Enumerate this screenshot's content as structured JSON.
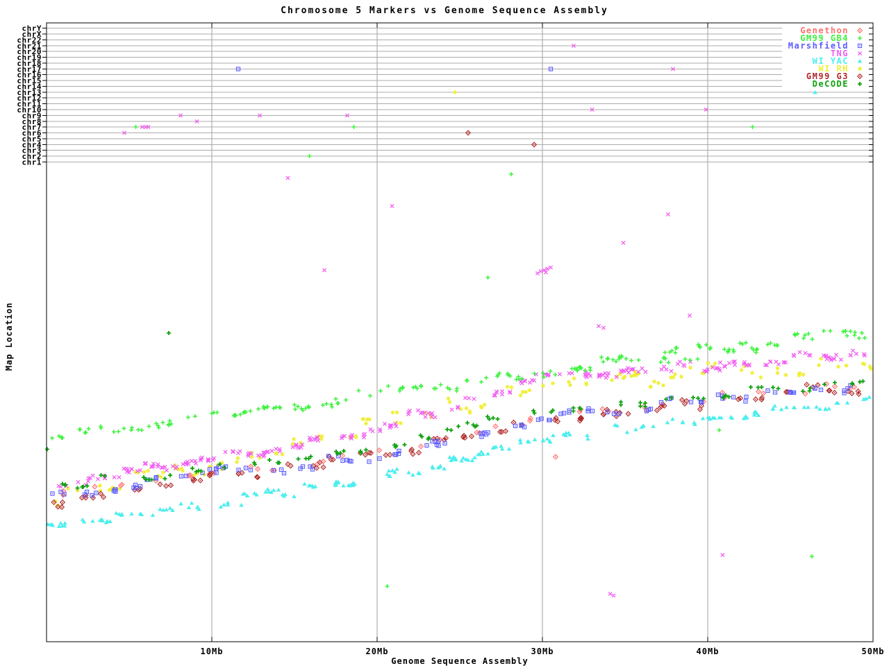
{
  "title": "Chromosome 5 Markers vs Genome Sequence Assembly",
  "axes": {
    "xlabel": "Genome Sequence Assembly",
    "ylabel": "Map Location",
    "x_ticks": [
      {
        "mb": 10,
        "label": "10Mb"
      },
      {
        "mb": 20,
        "label": "20Mb"
      },
      {
        "mb": 30,
        "label": "30Mb"
      },
      {
        "mb": 40,
        "label": "40Mb"
      },
      {
        "mb": 50,
        "label": "50Mb"
      }
    ],
    "x_range_mb": [
      0,
      50
    ],
    "chromosome_rows": [
      "chrY",
      "chrX",
      "chr22",
      "chr21",
      "chr20",
      "chr19",
      "chr18",
      "chr17",
      "chr16",
      "chr15",
      "chr14",
      "chr13",
      "chr12",
      "chr11",
      "chr10",
      "chr9",
      "chr8",
      "chr7",
      "chr6",
      "chr5",
      "chr4",
      "chr3",
      "chr2",
      "chr1"
    ]
  },
  "legend": {
    "position": "top-right",
    "entries": [
      {
        "label": "Genethon",
        "symbol": "diamond-dot",
        "color": "#ff6f6f"
      },
      {
        "label": "GM99 GB4",
        "symbol": "plus",
        "color": "#3cf23c"
      },
      {
        "label": "Marshfield",
        "symbol": "square-dot",
        "color": "#5b5bff"
      },
      {
        "label": "TNG",
        "symbol": "cross",
        "color": "#f25cf2"
      },
      {
        "label": "WI YAC",
        "symbol": "triangle",
        "color": "#4deeee"
      },
      {
        "label": "WI RH",
        "symbol": "star",
        "color": "#efef3a"
      },
      {
        "label": "GM99 G3",
        "symbol": "diamond-dot",
        "color": "#b02828"
      },
      {
        "label": "DeCODE",
        "symbol": "plus-bold",
        "color": "#0da10d"
      }
    ]
  },
  "colors": {
    "grid": "#9f9f9f",
    "row_line": "#ababab",
    "axis": "#000000",
    "background": "#ffffff"
  },
  "chart_data": {
    "type": "scatter",
    "x_unit": "Mb (genome sequence assembly position, 0-50)",
    "y_unit": "map location (normalized 0=bottom of map band axis, 1=top; upper panel = hits on other chromosomes)",
    "grid": "vertical gray gridlines every 10Mb; one horizontal gray line per chromosome row in upper panel",
    "legend_position": "top-right",
    "draw_order": [
      "WI RH",
      "WI YAC",
      "TNG",
      "Genethon",
      "GM99 G3",
      "Marshfield",
      "DeCODE",
      "GM99 GB4"
    ],
    "series": [
      {
        "name": "Genethon",
        "symbol": "diamond-dot",
        "color": "#ff6f6f",
        "seed": 11,
        "clusters": 26,
        "pts": [
          1,
          2
        ],
        "x_spread": 0.3,
        "band_jitter": 0.01,
        "v_jitter": 0.005,
        "trend": [
          [
            0,
            0.307
          ],
          [
            5,
            0.328
          ],
          [
            10,
            0.35
          ],
          [
            15,
            0.373
          ],
          [
            20,
            0.397
          ],
          [
            25,
            0.432
          ],
          [
            30,
            0.467
          ],
          [
            35,
            0.488
          ],
          [
            40,
            0.509
          ],
          [
            45,
            0.525
          ],
          [
            50,
            0.541
          ]
        ],
        "outliers": [
          [
            30.8,
            0.387
          ]
        ],
        "chromosome_hits": []
      },
      {
        "name": "GM99 GB4",
        "symbol": "plus",
        "color": "#3cf23c",
        "seed": 22,
        "clusters": 48,
        "pts": [
          2,
          6
        ],
        "x_spread": 0.45,
        "band_jitter": 0.012,
        "v_jitter": 0.006,
        "trend": [
          [
            0,
            0.432
          ],
          [
            5,
            0.452
          ],
          [
            10,
            0.472
          ],
          [
            15,
            0.494
          ],
          [
            20,
            0.516
          ],
          [
            25,
            0.541
          ],
          [
            30,
            0.567
          ],
          [
            35,
            0.589
          ],
          [
            40,
            0.61
          ],
          [
            45,
            0.628
          ],
          [
            50,
            0.644
          ]
        ],
        "outliers": [
          [
            26.7,
            0.763
          ],
          [
            28.1,
            0.98
          ],
          [
            20.6,
            0.116
          ],
          [
            46.3,
            0.179
          ],
          [
            40.7,
            0.443
          ]
        ],
        "chromosome_hits": [
          [
            "chr2",
            15.9
          ],
          [
            "chr7",
            5.4
          ],
          [
            "chr7",
            18.6
          ],
          [
            "chr7",
            42.7
          ]
        ]
      },
      {
        "name": "Marshfield",
        "symbol": "square-dot",
        "color": "#5b5bff",
        "seed": 33,
        "clusters": 34,
        "pts": [
          2,
          4
        ],
        "x_spread": 0.45,
        "band_jitter": 0.012,
        "v_jitter": 0.005,
        "trend": [
          [
            0,
            0.301
          ],
          [
            5,
            0.327
          ],
          [
            10,
            0.353
          ],
          [
            15,
            0.37
          ],
          [
            20,
            0.388
          ],
          [
            25,
            0.43
          ],
          [
            30,
            0.472
          ],
          [
            35,
            0.492
          ],
          [
            40,
            0.512
          ],
          [
            45,
            0.528
          ],
          [
            50,
            0.544
          ]
        ],
        "outliers": [],
        "chromosome_hits": [
          [
            "chr17",
            11.6
          ],
          [
            "chr17",
            30.5
          ]
        ]
      },
      {
        "name": "TNG",
        "symbol": "cross",
        "color": "#f25cf2",
        "seed": 44,
        "clusters": 42,
        "pts": [
          3,
          9
        ],
        "x_spread": 0.55,
        "band_jitter": 0.01,
        "v_jitter": 0.005,
        "trend": [
          [
            0,
            0.327
          ],
          [
            5,
            0.354
          ],
          [
            10,
            0.381
          ],
          [
            15,
            0.414
          ],
          [
            20,
            0.448
          ],
          [
            25,
            0.5
          ],
          [
            30,
            0.552
          ],
          [
            35,
            0.565
          ],
          [
            40,
            0.578
          ],
          [
            45,
            0.592
          ],
          [
            50,
            0.606
          ]
        ],
        "outliers": [
          [
            14.6,
            0.972
          ],
          [
            20.9,
            0.913
          ],
          [
            16.8,
            0.778
          ],
          [
            29.7,
            0.772
          ],
          [
            29.9,
            0.776
          ],
          [
            30.1,
            0.778
          ],
          [
            30.3,
            0.781
          ],
          [
            30.5,
            0.784
          ],
          [
            30.2,
            0.774
          ],
          [
            33.4,
            0.661
          ],
          [
            33.7,
            0.658
          ],
          [
            34.9,
            0.836
          ],
          [
            37.6,
            0.895
          ],
          [
            38.9,
            0.683
          ],
          [
            34.1,
            0.1
          ],
          [
            34.3,
            0.097
          ],
          [
            40.9,
            0.182
          ]
        ],
        "chromosome_hits": [
          [
            "chr6",
            4.7
          ],
          [
            "chr7",
            5.8
          ],
          [
            "chr7",
            6.0
          ],
          [
            "chr7",
            6.15
          ],
          [
            "chr8",
            9.1
          ],
          [
            "chr9",
            8.1
          ],
          [
            "chr9",
            12.9
          ],
          [
            "chr9",
            18.2
          ],
          [
            "chr10",
            33.0
          ],
          [
            "chr10",
            39.9
          ],
          [
            "chr17",
            37.9
          ],
          [
            "chr21",
            31.9
          ]
        ]
      },
      {
        "name": "WI YAC",
        "symbol": "triangle",
        "color": "#4deeee",
        "seed": 55,
        "clusters": 46,
        "pts": [
          2,
          6
        ],
        "x_spread": 0.5,
        "band_jitter": 0.008,
        "v_jitter": 0.004,
        "trend": [
          [
            0,
            0.237
          ],
          [
            5,
            0.263
          ],
          [
            10,
            0.289
          ],
          [
            15,
            0.316
          ],
          [
            20,
            0.344
          ],
          [
            25,
            0.382
          ],
          [
            30,
            0.42
          ],
          [
            35,
            0.445
          ],
          [
            40,
            0.47
          ],
          [
            45,
            0.488
          ],
          [
            50,
            0.507
          ]
        ],
        "outliers": [],
        "chromosome_hits": [
          [
            "chr13",
            46.5
          ]
        ]
      },
      {
        "name": "WI RH",
        "symbol": "star",
        "color": "#efef3a",
        "seed": 66,
        "clusters": 40,
        "pts": [
          2,
          5
        ],
        "x_spread": 0.45,
        "band_jitter": 0.014,
        "v_jitter": 0.008,
        "trend": [
          [
            0,
            0.305
          ],
          [
            5,
            0.336
          ],
          [
            10,
            0.368
          ],
          [
            15,
            0.411
          ],
          [
            20,
            0.455
          ],
          [
            25,
            0.494
          ],
          [
            30,
            0.533
          ],
          [
            35,
            0.548
          ],
          [
            40,
            0.564
          ],
          [
            45,
            0.572
          ],
          [
            50,
            0.581
          ]
        ],
        "outliers": [],
        "chromosome_hits": [
          [
            "chr13",
            24.7
          ]
        ]
      },
      {
        "name": "GM99 G3",
        "symbol": "diamond-dot",
        "color": "#b02828",
        "seed": 77,
        "clusters": 32,
        "pts": [
          2,
          4
        ],
        "x_spread": 0.4,
        "band_jitter": 0.012,
        "v_jitter": 0.006,
        "trend": [
          [
            0,
            0.295
          ],
          [
            5,
            0.319
          ],
          [
            10,
            0.344
          ],
          [
            15,
            0.367
          ],
          [
            20,
            0.391
          ],
          [
            25,
            0.426
          ],
          [
            30,
            0.462
          ],
          [
            35,
            0.483
          ],
          [
            40,
            0.504
          ],
          [
            45,
            0.52
          ],
          [
            50,
            0.536
          ]
        ],
        "outliers": [],
        "chromosome_hits": [
          [
            "chr6",
            25.5
          ],
          [
            "chr4",
            29.5
          ]
        ]
      },
      {
        "name": "DeCODE",
        "symbol": "plus-bold",
        "color": "#0da10d",
        "seed": 88,
        "clusters": 30,
        "pts": [
          2,
          4
        ],
        "x_spread": 0.4,
        "band_jitter": 0.008,
        "v_jitter": 0.005,
        "trend": [
          [
            0,
            0.323
          ],
          [
            5,
            0.341
          ],
          [
            10,
            0.359
          ],
          [
            15,
            0.383
          ],
          [
            20,
            0.407
          ],
          [
            25,
            0.445
          ],
          [
            30,
            0.484
          ],
          [
            35,
            0.501
          ],
          [
            40,
            0.519
          ],
          [
            45,
            0.533
          ],
          [
            50,
            0.547
          ]
        ],
        "outliers": [
          [
            7.4,
            0.647
          ],
          [
            0.05,
            0.403
          ]
        ],
        "chromosome_hits": []
      }
    ]
  }
}
